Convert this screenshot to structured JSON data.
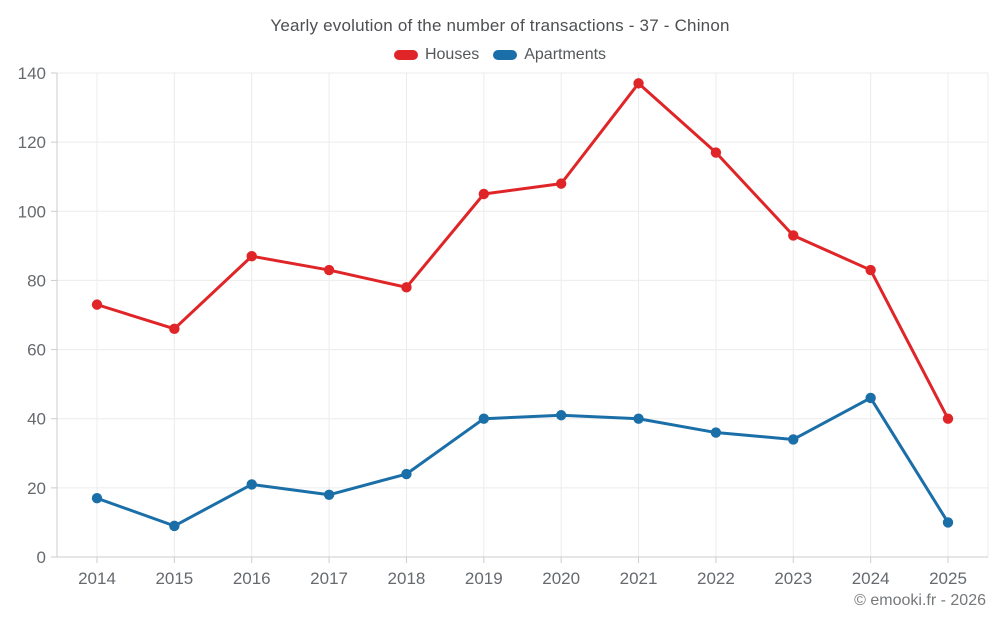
{
  "chart_data": {
    "type": "line",
    "title": "Yearly evolution of the number of transactions - 37 - Chinon",
    "x": [
      2014,
      2015,
      2016,
      2017,
      2018,
      2019,
      2020,
      2021,
      2022,
      2023,
      2024,
      2025
    ],
    "series": [
      {
        "name": "Houses",
        "color": "#e02528",
        "values": [
          73,
          66,
          87,
          83,
          78,
          105,
          108,
          137,
          117,
          93,
          83,
          40
        ]
      },
      {
        "name": "Apartments",
        "color": "#1b6fa8",
        "values": [
          17,
          9,
          21,
          18,
          24,
          40,
          41,
          40,
          36,
          34,
          46,
          10
        ]
      }
    ],
    "xlabel": "",
    "ylabel": "",
    "ylim": [
      0,
      140
    ],
    "ytick_step": 20,
    "grid": true,
    "legend_position": "top"
  },
  "legend": {
    "items": [
      {
        "label": "Houses"
      },
      {
        "label": "Apartments"
      }
    ]
  },
  "footer": {
    "text": "© emooki.fr - 2026"
  },
  "colors": {
    "grid": "#ececec",
    "axis": "#cccccc",
    "tick_text": "#666a6e",
    "title_text": "#4d4f52"
  }
}
